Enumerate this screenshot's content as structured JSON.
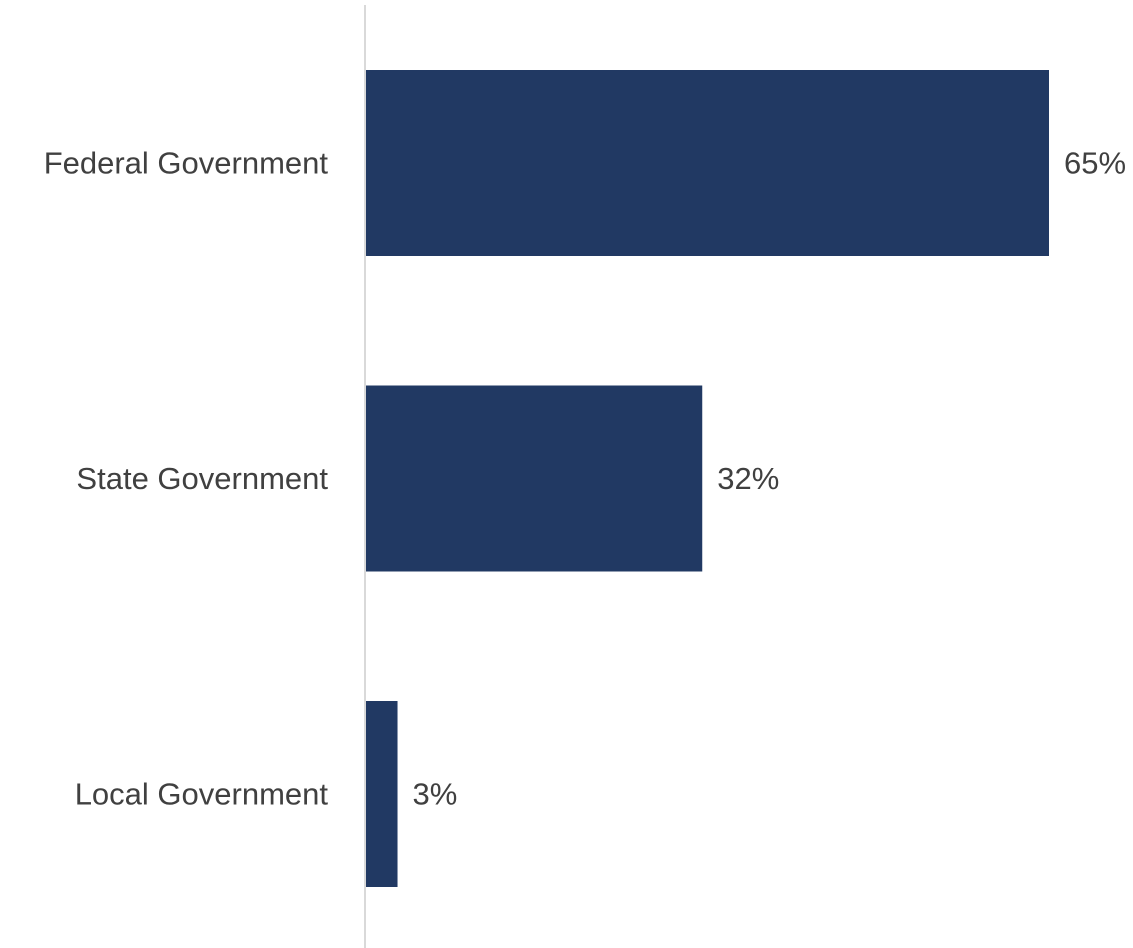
{
  "chart_data": {
    "type": "bar",
    "orientation": "horizontal",
    "categories": [
      "Federal Government",
      "State Government",
      "Local Government"
    ],
    "values": [
      65,
      32,
      3
    ],
    "value_labels": [
      "65%",
      "32%",
      "3%"
    ],
    "unit": "%",
    "xlim": [
      0,
      65
    ],
    "grid": false,
    "legend": "none",
    "title": "",
    "xlabel": "",
    "ylabel": ""
  },
  "colors": {
    "bar": "#213963",
    "axis": "#d9d9d9",
    "text": "#404040"
  }
}
